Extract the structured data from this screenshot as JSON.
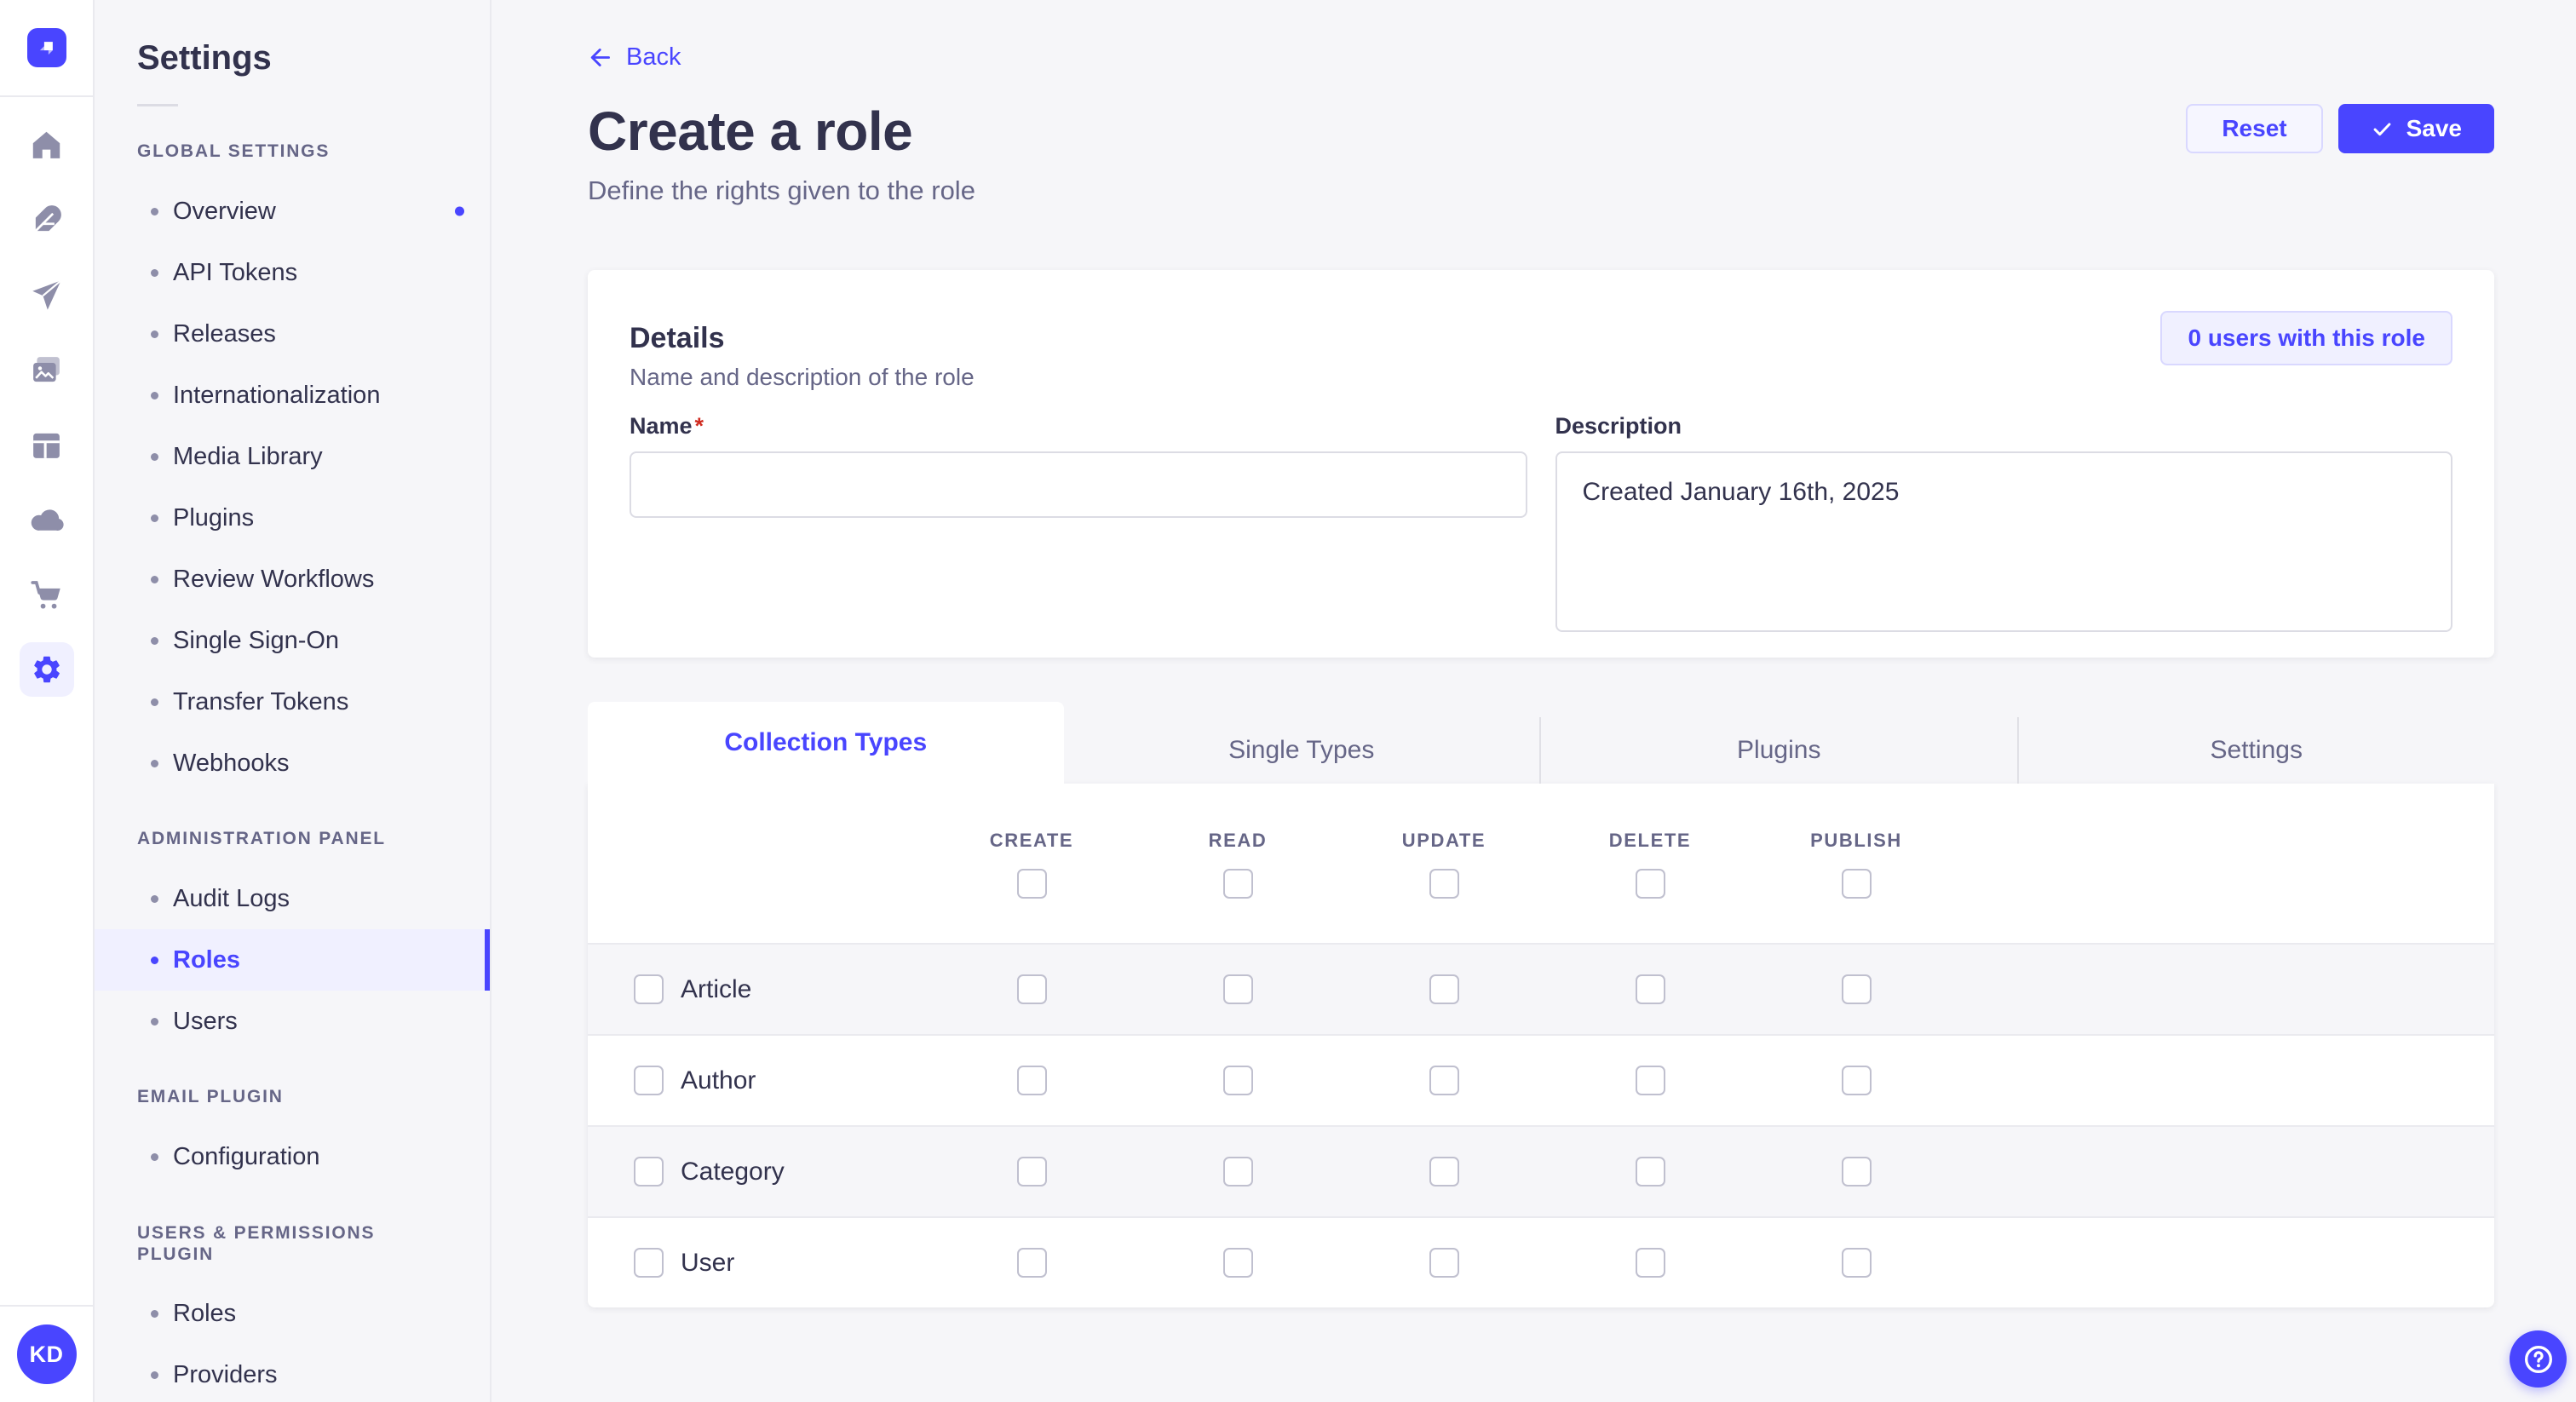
{
  "colors": {
    "brand": "#4945ff",
    "brand_light_bg": "#f0f0ff",
    "brand_border": "#d9d8ff",
    "text_dark": "#32324d",
    "text_grey": "#666687",
    "page_bg": "#f6f6f9",
    "stripe_bg": "#f6f6f9",
    "divider_grey": "#eaeaef",
    "input_border": "#dcdce4",
    "checkbox_border": "#c0c0cf",
    "required_red": "#d02b20"
  },
  "rail": {
    "logo_icon": "strapi-logo-icon",
    "items": [
      {
        "id": "home",
        "icon": "home-icon",
        "active": false
      },
      {
        "id": "content",
        "icon": "feather-icon",
        "active": false
      },
      {
        "id": "send",
        "icon": "paper-plane-icon",
        "active": false
      },
      {
        "id": "media",
        "icon": "pictures-icon",
        "active": false
      },
      {
        "id": "layout",
        "icon": "layout-icon",
        "active": false
      },
      {
        "id": "cloud",
        "icon": "cloud-icon",
        "active": false
      },
      {
        "id": "marketplace",
        "icon": "cart-icon",
        "active": false
      },
      {
        "id": "settings",
        "icon": "gear-icon",
        "active": true
      }
    ],
    "avatar_initials": "KD"
  },
  "sidebar": {
    "title": "Settings",
    "sections": [
      {
        "label": "GLOBAL SETTINGS",
        "items": [
          {
            "label": "Overview",
            "dot": true
          },
          {
            "label": "API Tokens"
          },
          {
            "label": "Releases"
          },
          {
            "label": "Internationalization"
          },
          {
            "label": "Media Library"
          },
          {
            "label": "Plugins"
          },
          {
            "label": "Review Workflows"
          },
          {
            "label": "Single Sign-On"
          },
          {
            "label": "Transfer Tokens"
          },
          {
            "label": "Webhooks"
          }
        ]
      },
      {
        "label": "ADMINISTRATION PANEL",
        "items": [
          {
            "label": "Audit Logs"
          },
          {
            "label": "Roles",
            "active": true
          },
          {
            "label": "Users"
          }
        ]
      },
      {
        "label": "EMAIL PLUGIN",
        "items": [
          {
            "label": "Configuration"
          }
        ]
      },
      {
        "label": "USERS & PERMISSIONS PLUGIN",
        "items": [
          {
            "label": "Roles"
          },
          {
            "label": "Providers"
          }
        ]
      }
    ]
  },
  "header": {
    "back_icon": "arrow-left-icon",
    "back_label": "Back",
    "title": "Create a role",
    "subtitle": "Define the rights given to the role",
    "reset_label": "Reset",
    "save_icon": "check-icon",
    "save_label": "Save"
  },
  "details": {
    "title": "Details",
    "subtitle": "Name and description of the role",
    "users_button_label": "0 users with this role",
    "name_label": "Name",
    "required_marker": "*",
    "name_value": "",
    "name_placeholder": "",
    "description_label": "Description",
    "description_value": "Created January 16th, 2025"
  },
  "tabs": [
    {
      "label": "Collection Types",
      "active": true
    },
    {
      "label": "Single Types",
      "active": false
    },
    {
      "label": "Plugins",
      "active": false
    },
    {
      "label": "Settings",
      "active": false
    }
  ],
  "permissions": {
    "columns": [
      "CREATE",
      "READ",
      "UPDATE",
      "DELETE",
      "PUBLISH"
    ],
    "rows": [
      {
        "label": "Article"
      },
      {
        "label": "Author"
      },
      {
        "label": "Category"
      },
      {
        "label": "User"
      }
    ],
    "all_checkboxes_checked": false
  },
  "help": {
    "icon": "help-circle-icon"
  }
}
